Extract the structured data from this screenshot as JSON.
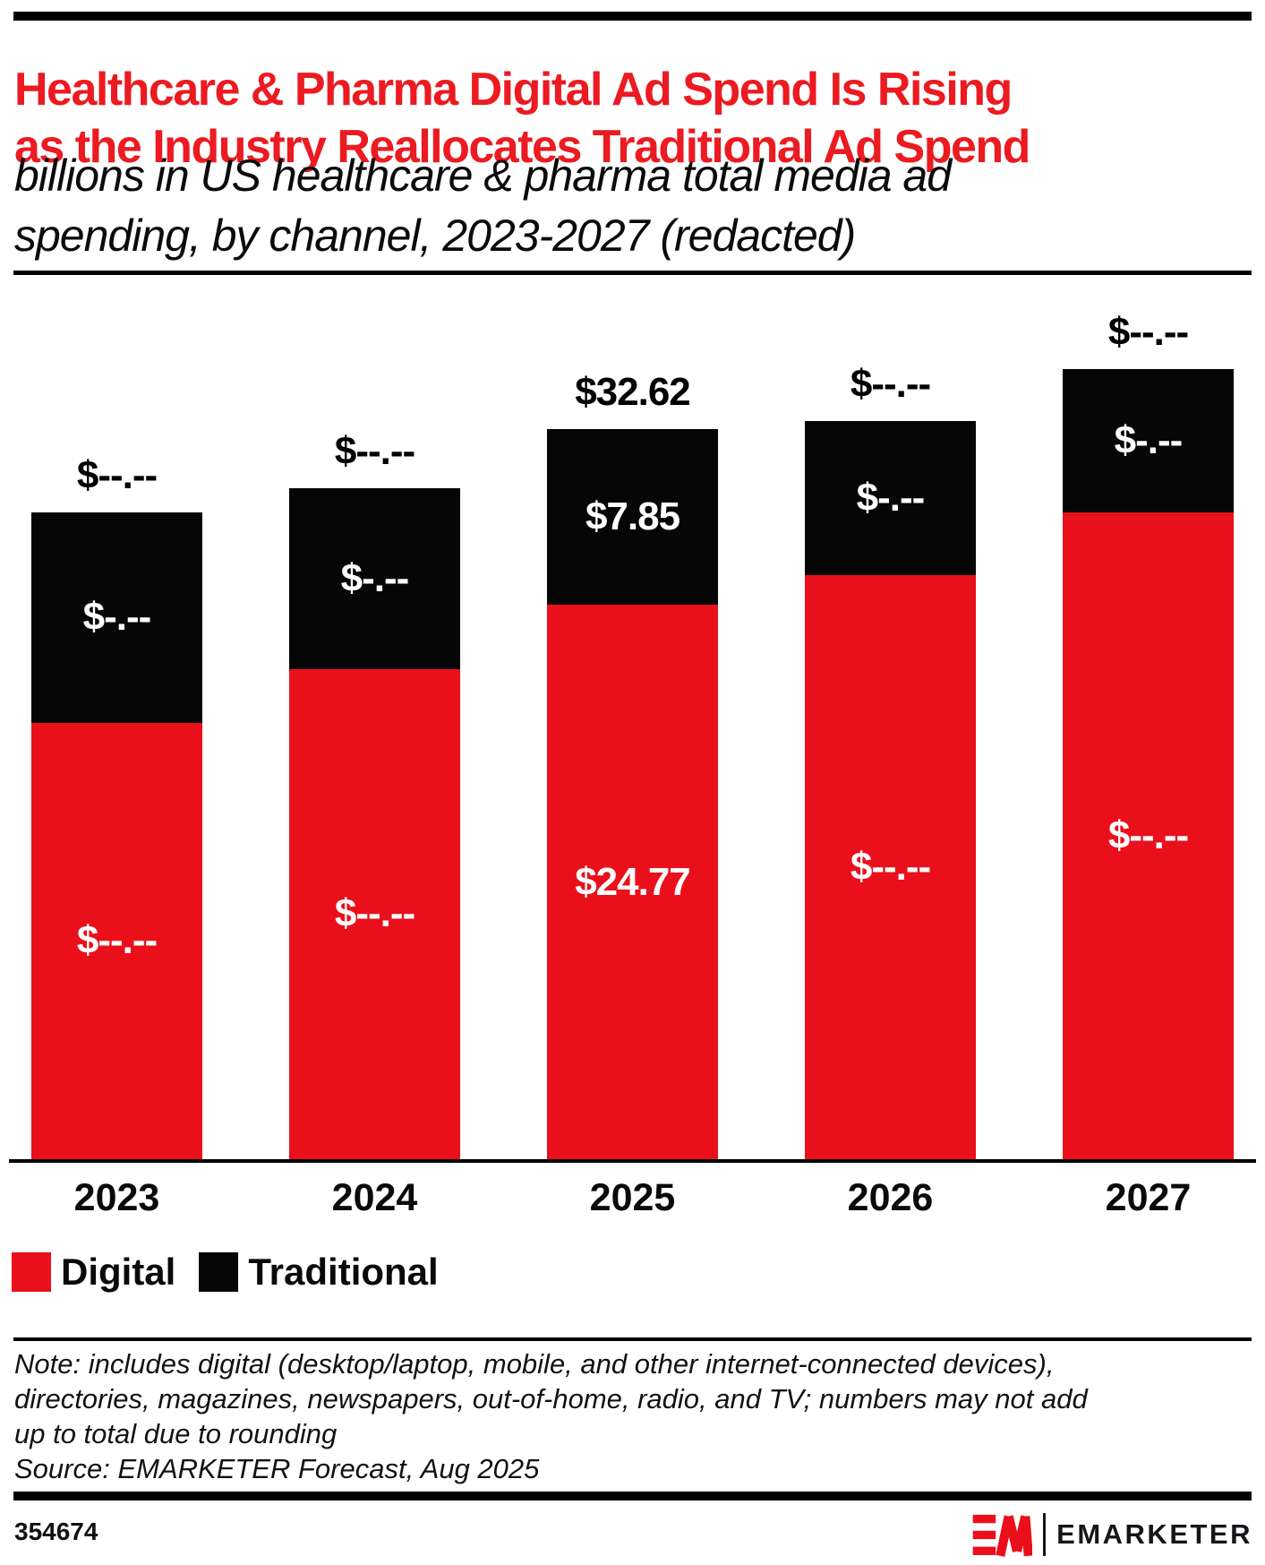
{
  "header": {
    "title_line1": "Healthcare & Pharma Digital Ad Spend Is Rising",
    "title_line2": "as the Industry Reallocates Traditional Ad Spend",
    "subtitle_line1": "billions in US healthcare & pharma total media ad",
    "subtitle_line2": "spending, by channel, 2023-2027 (redacted)",
    "title_color": "#ec1a21"
  },
  "chart_data": {
    "type": "bar",
    "stacked": true,
    "title": "Healthcare & Pharma Digital Ad Spend Is Rising as the Industry Reallocates Traditional Ad Spend",
    "subtitle": "billions in US healthcare & pharma total media ad spending, by channel, 2023-2027 (redacted)",
    "unit": "billions USD",
    "categories": [
      "2023",
      "2024",
      "2025",
      "2026",
      "2027"
    ],
    "series": [
      {
        "name": "Digital",
        "color": "#ea101b",
        "labels": [
          "$--.--",
          "$--.--",
          "$24.77",
          "$--.--",
          "$--.--"
        ],
        "values_billions_est": [
          19.5,
          21.9,
          24.77,
          26.1,
          28.9
        ]
      },
      {
        "name": "Traditional",
        "color": "#060606",
        "labels": [
          "$-.--",
          "$-.--",
          "$7.85",
          "$-.--",
          "$-.--"
        ],
        "values_billions_est": [
          9.4,
          8.1,
          7.85,
          6.9,
          6.4
        ]
      }
    ],
    "totals": {
      "labels": [
        "$--.--",
        "$--.--",
        "$32.62",
        "$--.--",
        "$--.--"
      ],
      "values_billions_est": [
        28.9,
        30.0,
        32.62,
        33.0,
        35.3
      ]
    },
    "ylim": [
      0,
      39.5
    ],
    "grid": false,
    "y_axis_shown": false,
    "legend_position": "bottom-left"
  },
  "legend": {
    "items": [
      {
        "label": "Digital",
        "color": "#ea101b"
      },
      {
        "label": "Traditional",
        "color": "#060606"
      }
    ]
  },
  "footnote": {
    "note_line1": "Note: includes digital (desktop/laptop, mobile, and other internet-connected devices),",
    "note_line2": "directories, magazines, newspapers, out-of-home, radio, and TV; numbers may not add",
    "note_line3": "up to total due to rounding",
    "source": "Source: EMARKETER Forecast, Aug 2025"
  },
  "footer": {
    "chart_id": "354674",
    "brand": "EMARKETER",
    "logo_monogram": "EM"
  },
  "colors": {
    "digital_red": "#ea101b",
    "traditional_black": "#060606",
    "title_red": "#ec1a21"
  }
}
